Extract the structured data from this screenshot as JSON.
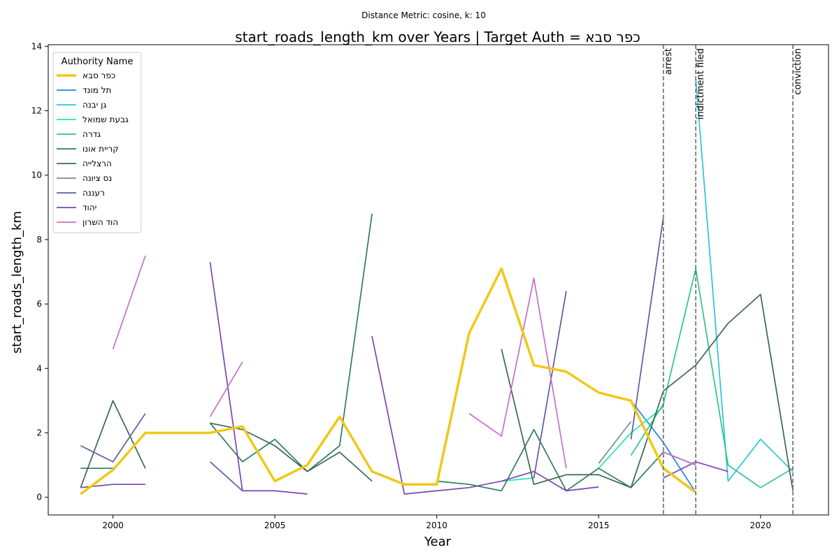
{
  "chart_data": {
    "type": "line",
    "subtitle": "Distance Metric: cosine, k: 10",
    "title": "start_roads_length_km over Years | Target Auth = כפר סבא",
    "xlabel": "Year",
    "ylabel": "start_roads_length_km",
    "xlim": [
      1998,
      2022.1
    ],
    "ylim": [
      -0.55,
      14.05
    ],
    "xticks": [
      2000,
      2005,
      2010,
      2015,
      2020
    ],
    "yticks": [
      0,
      2,
      4,
      6,
      8,
      10,
      12,
      14
    ],
    "grid": false,
    "legend": {
      "title": "Authority Name",
      "placement": "top-left"
    },
    "events": [
      {
        "x": 2017,
        "label": "arrest"
      },
      {
        "x": 2018,
        "label": "indictment filed"
      },
      {
        "x": 2021,
        "label": "conviction"
      }
    ],
    "series": [
      {
        "name": "כפר סבא",
        "color": "#f0c818",
        "width": 3.5,
        "target": true,
        "points": [
          [
            1999,
            0.1
          ],
          [
            2000,
            0.85
          ],
          [
            2001,
            2.0
          ],
          [
            2003,
            2.0
          ],
          [
            2004,
            2.2
          ],
          [
            2005,
            0.5
          ],
          [
            2006,
            1.0
          ],
          [
            2007,
            2.5
          ],
          [
            2008,
            0.8
          ],
          [
            2009,
            0.4
          ],
          [
            2010,
            0.4
          ],
          [
            2011,
            5.1
          ],
          [
            2012,
            7.1
          ],
          [
            2013,
            4.1
          ],
          [
            2014,
            3.9
          ],
          [
            2015,
            3.25
          ],
          [
            2016,
            3.0
          ],
          [
            2017,
            0.9
          ],
          [
            2018,
            0.15
          ]
        ]
      },
      {
        "name": "תל מונד",
        "color": "#1e88e5",
        "width": 1.7,
        "points": [
          [
            2016,
            3.0
          ],
          [
            2017,
            1.7
          ],
          [
            2018,
            0.15
          ]
        ]
      },
      {
        "name": "גן יבנה",
        "color": "#26c6da",
        "width": 1.7,
        "points": [
          [
            2018,
            13.0
          ],
          [
            2019,
            0.5
          ],
          [
            2020,
            1.8
          ],
          [
            2021,
            0.8
          ]
        ]
      },
      {
        "name": "גבעת שמואל",
        "color": "#1de9b6",
        "width": 1.7,
        "points": [
          [
            2012,
            0.5
          ],
          [
            2013,
            0.6
          ],
          null,
          [
            2015,
            0.9
          ],
          [
            2016,
            2.0
          ],
          [
            2017,
            2.8
          ]
        ]
      },
      {
        "name": "גדרה",
        "color": "#2fc48d",
        "width": 1.7,
        "points": [
          [
            2016,
            1.3
          ],
          [
            2017,
            2.9
          ],
          [
            2018,
            7.1
          ],
          [
            2019,
            1.0
          ],
          [
            2020,
            0.3
          ],
          [
            2021,
            0.9
          ]
        ]
      },
      {
        "name": "קריית אונו",
        "color": "#2e7d5b",
        "width": 1.7,
        "points": [
          [
            1999,
            0.9
          ],
          [
            2000,
            0.9
          ],
          null,
          [
            2003,
            2.3
          ],
          [
            2004,
            1.1
          ],
          [
            2005,
            1.8
          ],
          [
            2006,
            0.8
          ],
          [
            2007,
            1.6
          ],
          [
            2008,
            8.8
          ],
          null,
          [
            2010,
            0.5
          ],
          [
            2011,
            0.4
          ],
          [
            2012,
            0.2
          ],
          [
            2013,
            2.1
          ],
          [
            2014,
            0.2
          ],
          [
            2015,
            0.9
          ],
          [
            2016,
            0.3
          ],
          [
            2017,
            1.4
          ],
          [
            2018,
            1.0
          ]
        ]
      },
      {
        "name": "הרצלייה",
        "color": "#3d6654",
        "width": 1.7,
        "points": [
          [
            1999,
            0.3
          ],
          [
            2000,
            3.0
          ],
          [
            2001,
            0.9
          ],
          null,
          [
            2003,
            2.3
          ],
          [
            2004,
            2.1
          ],
          [
            2005,
            1.6
          ],
          [
            2006,
            0.8
          ],
          [
            2007,
            1.4
          ],
          [
            2008,
            0.5
          ],
          null,
          [
            2012,
            4.6
          ],
          [
            2013,
            0.4
          ],
          [
            2014,
            0.7
          ],
          [
            2015,
            0.7
          ],
          [
            2016,
            0.3
          ],
          [
            2017,
            3.3
          ],
          [
            2018,
            4.1
          ],
          [
            2019,
            5.4
          ],
          [
            2020,
            6.3
          ],
          [
            2021,
            0.2
          ]
        ]
      },
      {
        "name": "נס ציונה",
        "color": "#7f8c8d",
        "width": 1.7,
        "points": [
          [
            2015,
            1.05
          ],
          [
            2016,
            2.35
          ]
        ]
      },
      {
        "name": "רעננה",
        "color": "#5e5aa0",
        "width": 1.7,
        "points": [
          [
            1999,
            1.6
          ],
          [
            2000,
            1.1
          ],
          [
            2001,
            2.6
          ],
          null,
          [
            2003,
            1.1
          ],
          [
            2004,
            0.2
          ],
          null,
          [
            2013,
            0.6
          ],
          [
            2014,
            6.4
          ],
          null,
          [
            2016,
            1.8
          ],
          [
            2017,
            8.7
          ]
        ]
      },
      {
        "name": "יהוד",
        "color": "#7b45b0",
        "width": 1.7,
        "points": [
          [
            1999,
            0.3
          ],
          [
            2000,
            0.4
          ],
          [
            2001,
            0.4
          ],
          null,
          [
            2003,
            7.3
          ],
          [
            2004,
            0.2
          ],
          [
            2005,
            0.2
          ],
          [
            2006,
            0.1
          ],
          null,
          [
            2008,
            5.0
          ],
          [
            2009,
            0.1
          ],
          [
            2010,
            0.2
          ],
          [
            2011,
            0.3
          ],
          [
            2012,
            0.5
          ],
          [
            2013,
            0.8
          ],
          [
            2014,
            0.2
          ],
          [
            2015,
            0.32
          ],
          null,
          [
            2017,
            0.6
          ],
          [
            2018,
            1.1
          ],
          [
            2019,
            0.8
          ]
        ]
      },
      {
        "name": "הוד השרון",
        "color": "#c86ec8",
        "width": 1.7,
        "points": [
          [
            2000,
            4.6
          ],
          [
            2001,
            7.5
          ],
          null,
          [
            2003,
            2.5
          ],
          [
            2004,
            4.2
          ],
          null,
          [
            2011,
            2.6
          ],
          [
            2012,
            1.9
          ],
          [
            2013,
            6.8
          ],
          [
            2014,
            0.9
          ],
          null,
          [
            2017,
            1.4
          ],
          [
            2018,
            1.0
          ]
        ]
      }
    ]
  }
}
